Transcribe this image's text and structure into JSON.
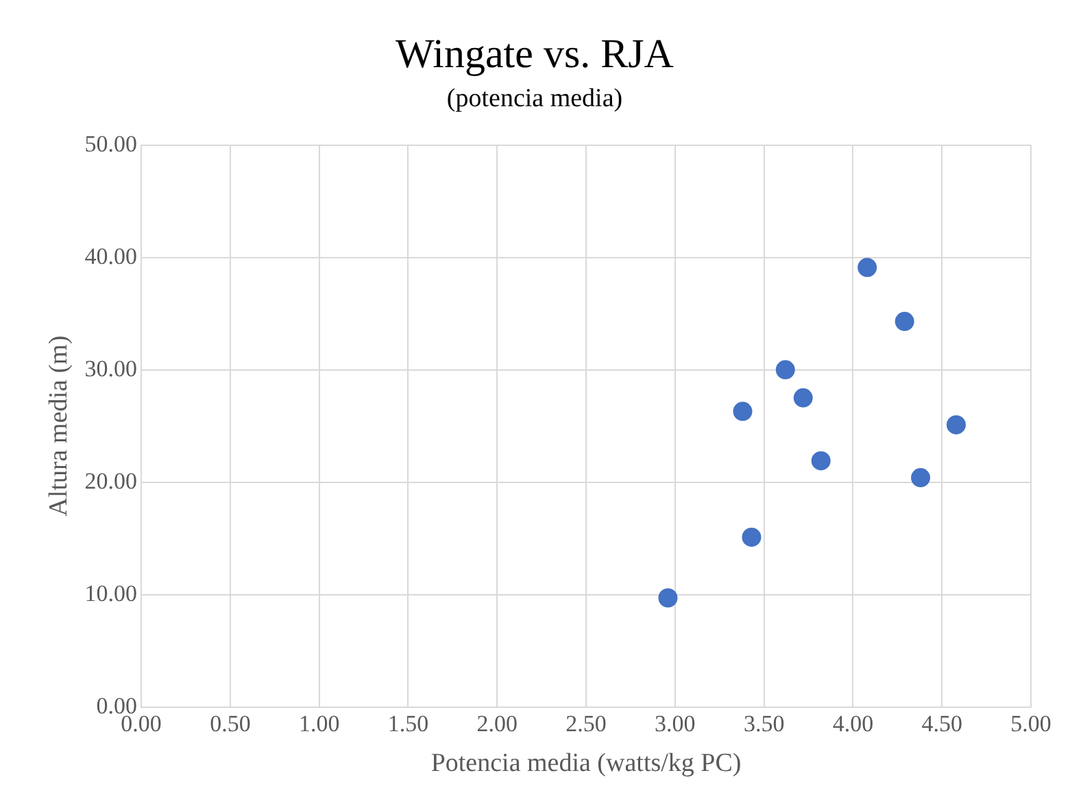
{
  "chart_data": {
    "type": "scatter",
    "title": "Wingate vs. RJA",
    "subtitle": "(potencia media)",
    "xlabel": "Potencia media (watts/kg PC)",
    "ylabel": "Altura media (m)",
    "x": [
      2.96,
      3.43,
      3.38,
      3.62,
      3.72,
      3.82,
      4.08,
      4.29,
      4.38,
      4.58
    ],
    "values": [
      9.7,
      15.1,
      26.3,
      30.0,
      27.5,
      21.9,
      39.1,
      34.3,
      20.4,
      25.1
    ],
    "color": "#4472c4",
    "marker": "circle",
    "grid": true,
    "legend": false,
    "xlim": [
      0,
      5
    ],
    "xticks": [
      {
        "value": 0,
        "label": "0.00"
      },
      {
        "value": 0.5,
        "label": "0.50"
      },
      {
        "value": 1,
        "label": "1.00"
      },
      {
        "value": 1.5,
        "label": "1.50"
      },
      {
        "value": 2,
        "label": "2.00"
      },
      {
        "value": 2.5,
        "label": "2.50"
      },
      {
        "value": 3,
        "label": "3.00"
      },
      {
        "value": 3.5,
        "label": "3.50"
      },
      {
        "value": 4,
        "label": "4.00"
      },
      {
        "value": 4.5,
        "label": "4.50"
      },
      {
        "value": 5,
        "label": "5.00"
      }
    ],
    "ylim": [
      0,
      50
    ],
    "yticks": [
      {
        "value": 0,
        "label": "0.00"
      },
      {
        "value": 10,
        "label": "10.00"
      },
      {
        "value": 20,
        "label": "20.00"
      },
      {
        "value": 30,
        "label": "30.00"
      },
      {
        "value": 40,
        "label": "40.00"
      },
      {
        "value": 50,
        "label": "50.00"
      }
    ]
  }
}
